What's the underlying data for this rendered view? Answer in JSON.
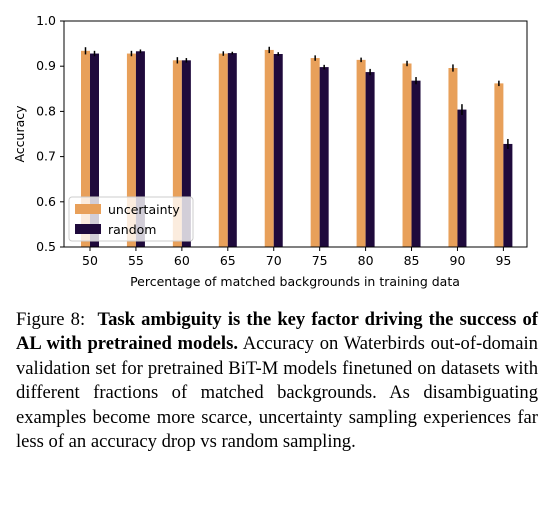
{
  "chart_data": {
    "type": "bar",
    "xlabel": "Percentage of matched backgrounds in training data",
    "ylabel": "Accuracy",
    "ylim": [
      0.5,
      1.0
    ],
    "yticks": [
      "0.5",
      "0.6",
      "0.7",
      "0.8",
      "0.9",
      "1.0"
    ],
    "categories": [
      "50",
      "55",
      "60",
      "65",
      "70",
      "75",
      "80",
      "85",
      "90",
      "95"
    ],
    "series": [
      {
        "name": "uncertainty",
        "color": "#e8a05a",
        "values": [
          0.934,
          0.928,
          0.913,
          0.928,
          0.936,
          0.918,
          0.914,
          0.906,
          0.896,
          0.862
        ],
        "errors": [
          0.008,
          0.006,
          0.007,
          0.005,
          0.007,
          0.006,
          0.005,
          0.006,
          0.008,
          0.006
        ]
      },
      {
        "name": "random",
        "color": "#1f0a3c",
        "values": [
          0.928,
          0.933,
          0.913,
          0.929,
          0.927,
          0.898,
          0.887,
          0.868,
          0.804,
          0.728
        ],
        "errors": [
          0.006,
          0.004,
          0.005,
          0.003,
          0.004,
          0.005,
          0.007,
          0.008,
          0.012,
          0.011
        ]
      }
    ],
    "legend": "lower-left",
    "grid": false
  },
  "caption": {
    "label": "Figure 8:",
    "title": "Task ambiguity is the key factor driving the success of AL with pretrained models.",
    "body": "Accuracy on Waterbirds out-of-domain validation set for pretrained BiT-M models finetuned on datasets with different fractions of matched backgrounds. As disambiguating examples become more scarce, uncertainty sampling experiences far less of an accuracy drop vs random sampling."
  }
}
